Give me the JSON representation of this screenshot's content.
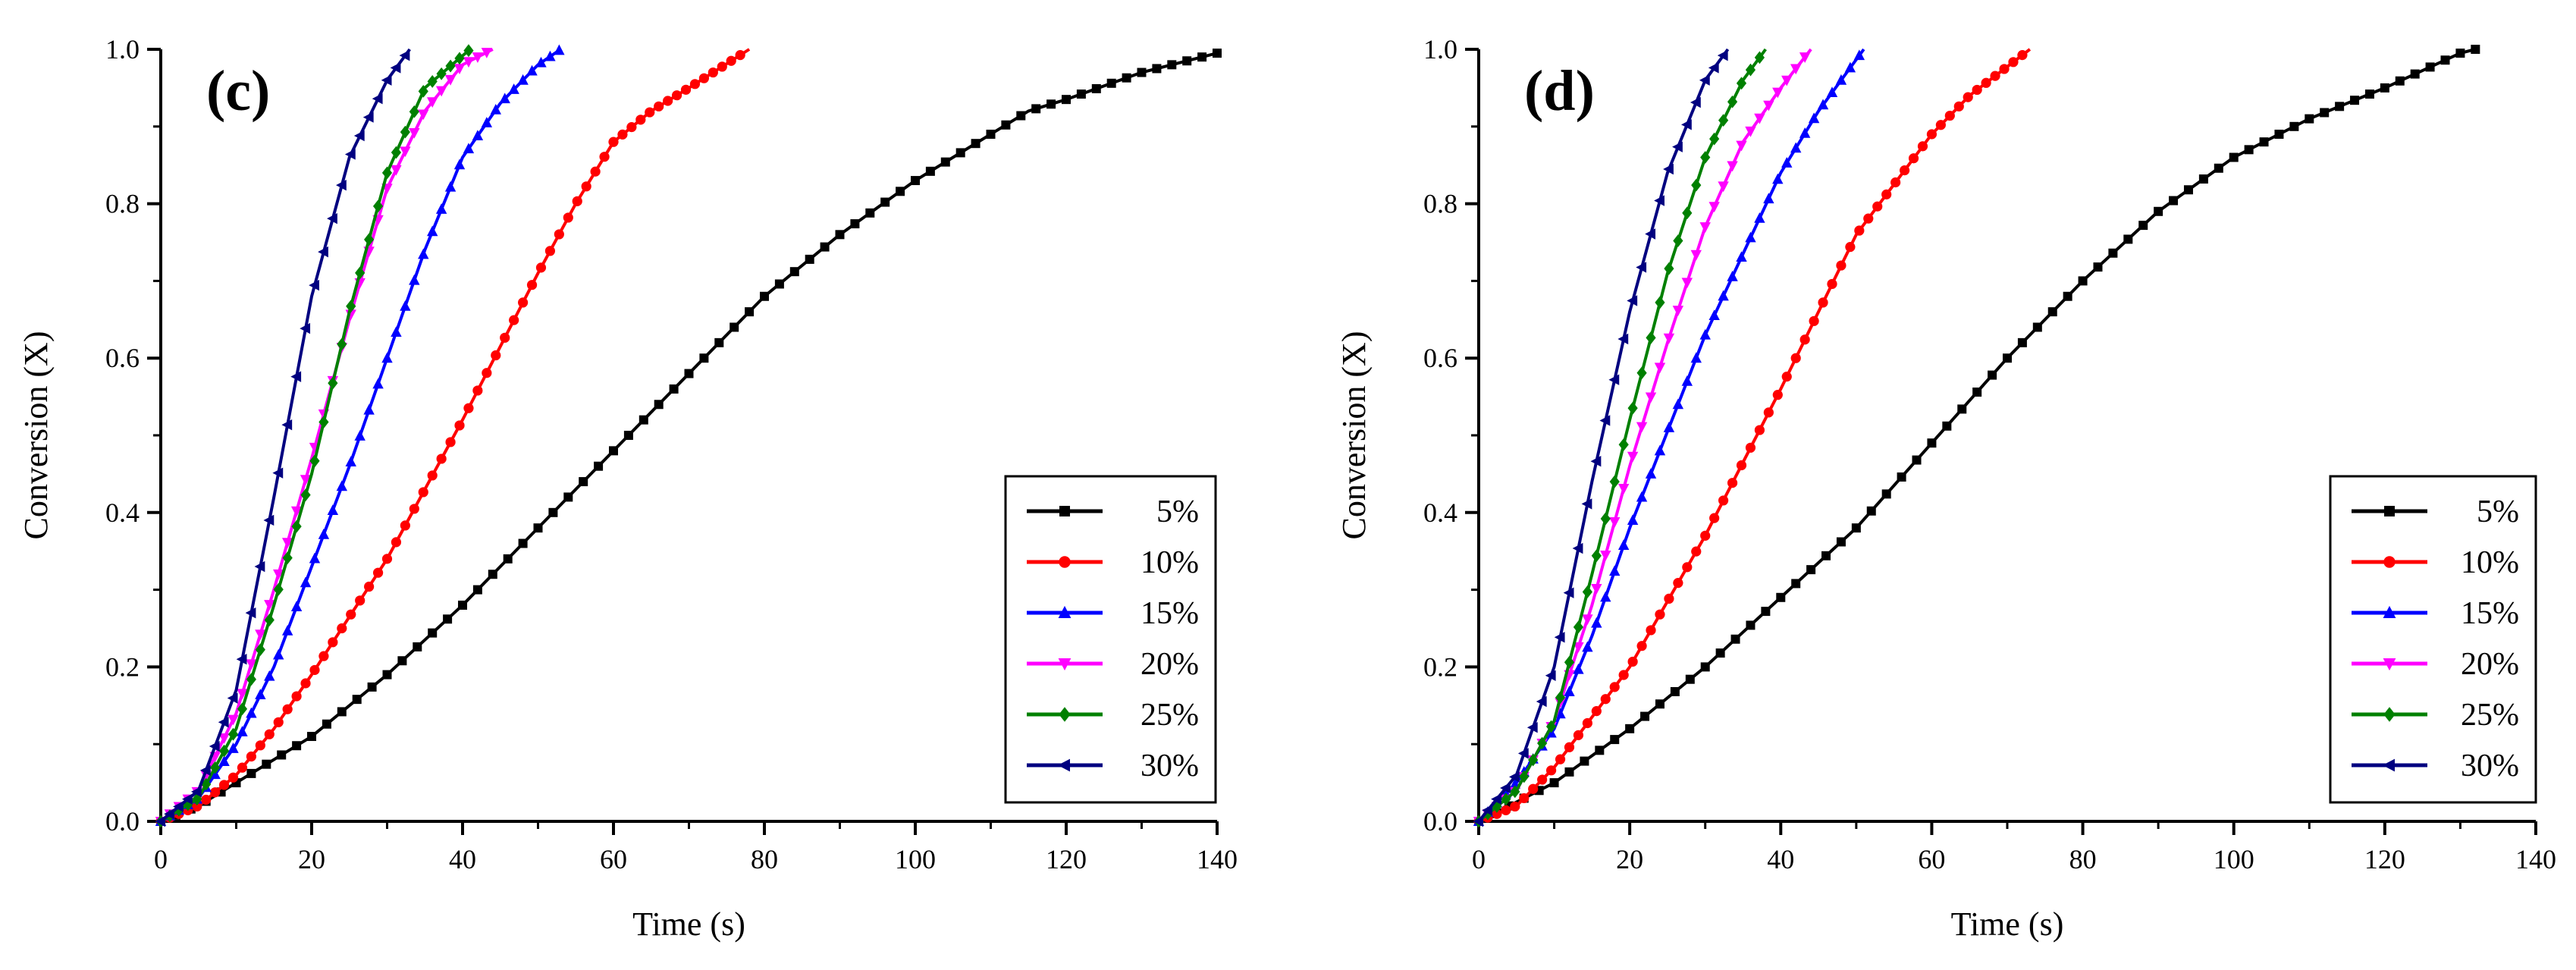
{
  "chart_data": [
    {
      "type": "line",
      "panel_label": "(c)",
      "xlabel": "Time (s)",
      "ylabel": "Conversion (X)",
      "xlim": [
        0,
        140
      ],
      "ylim": [
        0,
        1.0
      ],
      "xticks": [
        "0",
        "20",
        "40",
        "60",
        "80",
        "100",
        "120",
        "140"
      ],
      "yticks": [
        "0.0",
        "0.2",
        "0.4",
        "0.6",
        "0.8",
        "1.0"
      ],
      "legend_position": "bottom-right",
      "series": [
        {
          "name": "5%",
          "color": "#000000",
          "marker": "square",
          "x": [
            0,
            5,
            10,
            20,
            30,
            40,
            50,
            60,
            70,
            80,
            90,
            100,
            110,
            115,
            120,
            130,
            140
          ],
          "y": [
            0,
            0.02,
            0.05,
            0.11,
            0.19,
            0.28,
            0.38,
            0.48,
            0.58,
            0.68,
            0.76,
            0.83,
            0.89,
            0.92,
            0.935,
            0.97,
            0.995
          ]
        },
        {
          "name": "10%",
          "color": "#ff0000",
          "marker": "circle",
          "x": [
            0,
            5,
            10,
            15,
            20,
            30,
            40,
            50,
            55,
            60,
            65,
            70,
            78
          ],
          "y": [
            0,
            0.02,
            0.06,
            0.12,
            0.19,
            0.34,
            0.52,
            0.71,
            0.8,
            0.88,
            0.92,
            0.95,
            1.0
          ]
        },
        {
          "name": "15%",
          "color": "#0000ff",
          "marker": "triangle-up",
          "x": [
            0,
            5,
            10,
            15,
            20,
            25,
            30,
            35,
            40,
            45,
            50,
            53
          ],
          "y": [
            0,
            0.03,
            0.1,
            0.2,
            0.33,
            0.46,
            0.6,
            0.74,
            0.86,
            0.93,
            0.98,
            1.0
          ]
        },
        {
          "name": "20%",
          "color": "#ff00ff",
          "marker": "triangle-down",
          "x": [
            0,
            5,
            10,
            15,
            20,
            25,
            30,
            35,
            40,
            44
          ],
          "y": [
            0,
            0.04,
            0.14,
            0.3,
            0.47,
            0.65,
            0.82,
            0.92,
            0.98,
            1.0
          ]
        },
        {
          "name": "25%",
          "color": "#008000",
          "marker": "diamond",
          "x": [
            0,
            5,
            10,
            15,
            20,
            25,
            30,
            35,
            41
          ],
          "y": [
            0,
            0.03,
            0.12,
            0.28,
            0.45,
            0.66,
            0.84,
            0.95,
            1.0
          ]
        },
        {
          "name": "30%",
          "color": "#000080",
          "marker": "triangle-left",
          "x": [
            0,
            5,
            10,
            15,
            20,
            25,
            30,
            33
          ],
          "y": [
            0,
            0.04,
            0.17,
            0.42,
            0.68,
            0.86,
            0.96,
            1.0
          ]
        }
      ]
    },
    {
      "type": "line",
      "panel_label": "(d)",
      "xlabel": "Time (s)",
      "ylabel": "Conversion (X)",
      "xlim": [
        0,
        140
      ],
      "ylim": [
        0,
        1.0
      ],
      "xticks": [
        "0",
        "20",
        "40",
        "60",
        "80",
        "100",
        "120",
        "140"
      ],
      "yticks": [
        "0.0",
        "0.2",
        "0.4",
        "0.6",
        "0.8",
        "1.0"
      ],
      "legend_position": "bottom-right",
      "series": [
        {
          "name": "5%",
          "color": "#000000",
          "marker": "square",
          "x": [
            0,
            10,
            20,
            30,
            40,
            50,
            60,
            70,
            80,
            90,
            100,
            110,
            120,
            130,
            132
          ],
          "y": [
            0,
            0.05,
            0.12,
            0.2,
            0.29,
            0.38,
            0.49,
            0.6,
            0.7,
            0.79,
            0.86,
            0.91,
            0.95,
            0.995,
            1.0
          ]
        },
        {
          "name": "10%",
          "color": "#ff0000",
          "marker": "circle",
          "x": [
            0,
            5,
            10,
            20,
            30,
            40,
            50,
            60,
            65,
            73
          ],
          "y": [
            0,
            0.02,
            0.07,
            0.2,
            0.37,
            0.56,
            0.76,
            0.89,
            0.94,
            1.0
          ]
        },
        {
          "name": "15%",
          "color": "#0000ff",
          "marker": "triangle-up",
          "x": [
            0,
            5,
            10,
            15,
            20,
            30,
            40,
            45,
            51
          ],
          "y": [
            0,
            0.05,
            0.12,
            0.24,
            0.38,
            0.63,
            0.84,
            0.92,
            1.0
          ]
        },
        {
          "name": "20%",
          "color": "#ff00ff",
          "marker": "triangle-down",
          "x": [
            0,
            5,
            10,
            15,
            20,
            25,
            30,
            35,
            40,
            44
          ],
          "y": [
            0,
            0.04,
            0.13,
            0.28,
            0.46,
            0.62,
            0.77,
            0.88,
            0.95,
            1.0
          ]
        },
        {
          "name": "25%",
          "color": "#008000",
          "marker": "diamond",
          "x": [
            0,
            5,
            10,
            15,
            20,
            25,
            30,
            35,
            38
          ],
          "y": [
            0,
            0.04,
            0.13,
            0.32,
            0.52,
            0.71,
            0.86,
            0.96,
            1.0
          ]
        },
        {
          "name": "30%",
          "color": "#000080",
          "marker": "triangle-left",
          "x": [
            0,
            5,
            10,
            15,
            20,
            25,
            30,
            33
          ],
          "y": [
            0,
            0.06,
            0.2,
            0.44,
            0.66,
            0.84,
            0.96,
            1.0
          ]
        }
      ]
    }
  ]
}
